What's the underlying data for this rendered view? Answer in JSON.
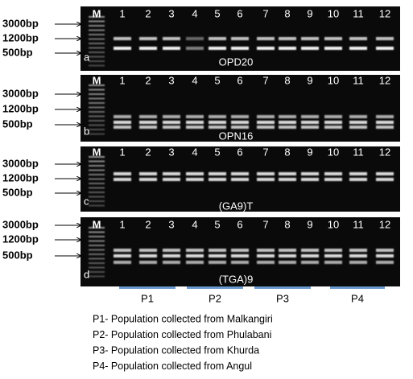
{
  "panels": [
    {
      "letter": "a",
      "label": "OPD20",
      "lanes": [
        "M",
        "1",
        "2",
        "3",
        "4",
        "5",
        "6",
        "7",
        "8",
        "9",
        "10",
        "11",
        "12"
      ],
      "markers": [
        "3000bp",
        "1200bp",
        "500bp"
      ]
    },
    {
      "letter": "b",
      "label": "OPN16",
      "lanes": [
        "M",
        "1",
        "2",
        "3",
        "4",
        "5",
        "6",
        "7",
        "8",
        "9",
        "10",
        "11",
        "12"
      ],
      "markers": [
        "3000bp",
        "1200bp",
        "500bp"
      ]
    },
    {
      "letter": "c",
      "label": "(GA9)T",
      "lanes": [
        "M",
        "1",
        "2",
        "3",
        "4",
        "5",
        "6",
        "7",
        "8",
        "9",
        "10",
        "11",
        "12"
      ],
      "markers": [
        "3000bp",
        "1200bp",
        "500bp"
      ]
    },
    {
      "letter": "d",
      "label": "(TGA)9",
      "lanes": [
        "M",
        "1",
        "2",
        "3",
        "4",
        "5",
        "6",
        "7",
        "8",
        "9",
        "10",
        "11",
        "12"
      ],
      "markers": [
        "3000bp",
        "1200bp",
        "500bp"
      ]
    }
  ],
  "groups": [
    "P1",
    "P2",
    "P3",
    "P4"
  ],
  "legend": [
    "P1- Population collected from Malkangiri",
    "P2- Population collected from Phulabani",
    "P3- Population collected from Khurda",
    "P4- Population collected from Angul"
  ]
}
